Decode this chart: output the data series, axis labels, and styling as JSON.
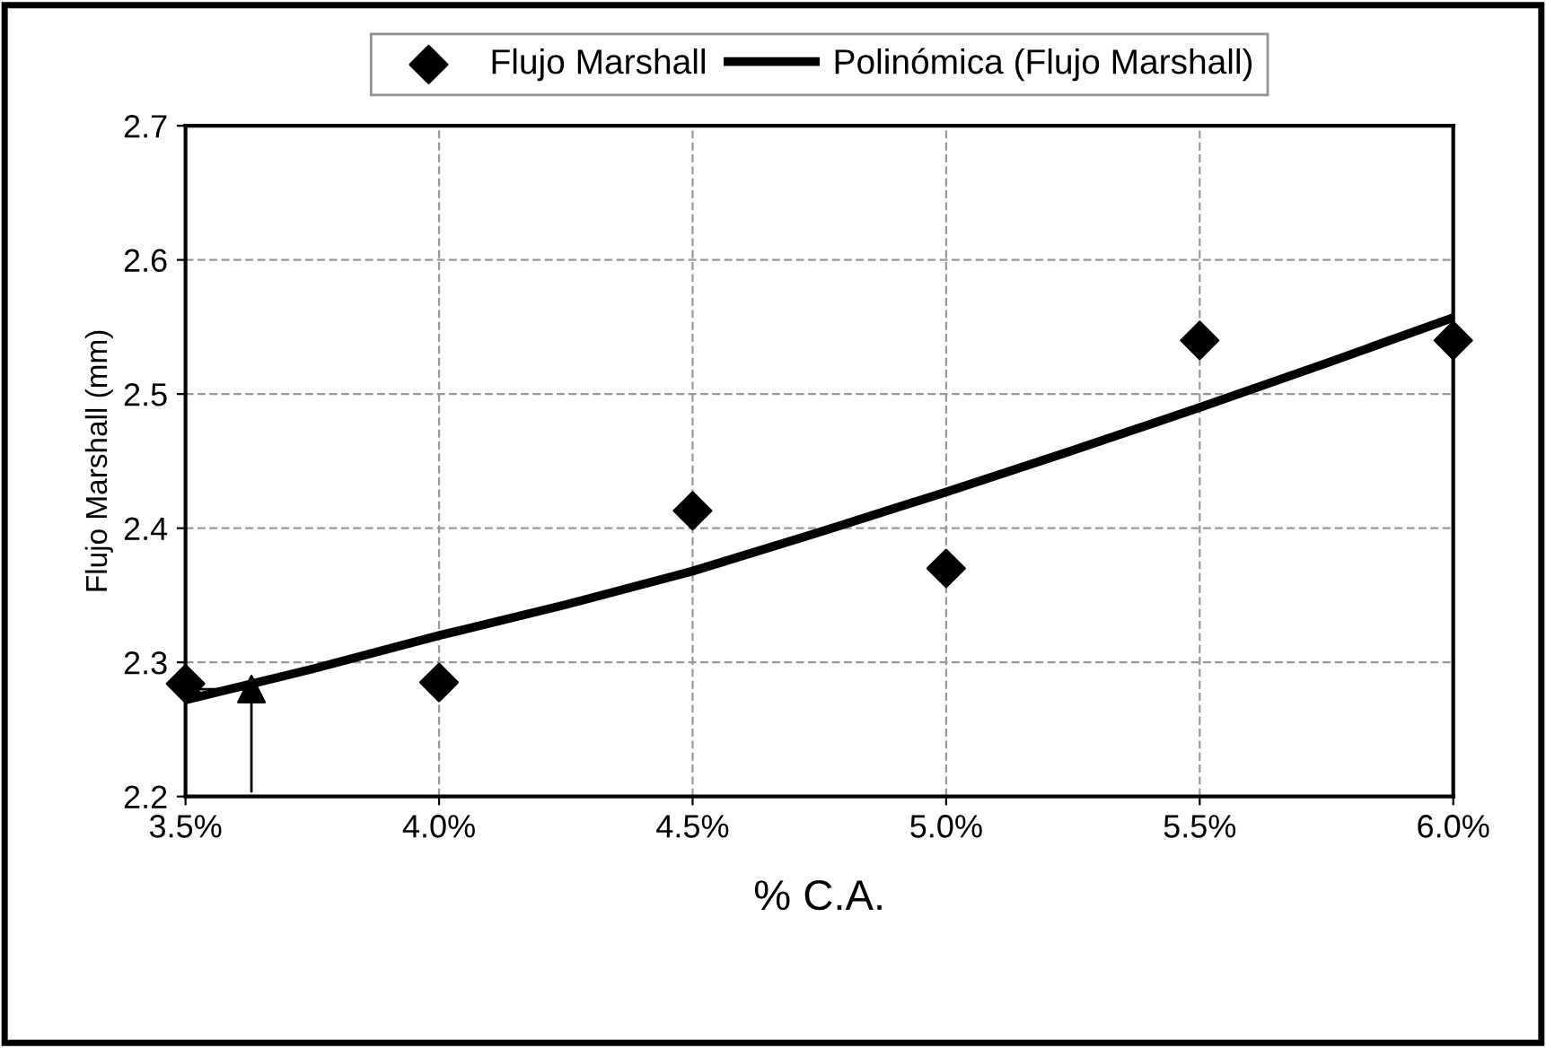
{
  "chart_data": {
    "type": "scatter",
    "xlabel": "% C.A.",
    "ylabel": "Flujo Marshall (mm)",
    "series": [
      {
        "name": "Flujo Marshall",
        "color": "#000000",
        "marker": "diamond",
        "x": [
          3.5,
          4.0,
          4.5,
          5.0,
          5.5,
          6.0
        ],
        "values": [
          2.284,
          2.285,
          2.413,
          2.37,
          2.54,
          2.54
        ]
      },
      {
        "name": "Polinómica (Flujo Marshall)",
        "type": "line",
        "color": "#000000",
        "marker": "none",
        "line_style": "solid",
        "x": [
          3.5,
          3.75,
          4.0,
          4.25,
          4.5,
          4.75,
          5.0,
          5.25,
          5.5,
          5.75,
          6.0
        ],
        "values": [
          2.272,
          2.295,
          2.32,
          2.343,
          2.368,
          2.397,
          2.427,
          2.458,
          2.49,
          2.523,
          2.557
        ]
      },
      {
        "color": "#000000",
        "marker": "triangle",
        "x": [
          3.63
        ],
        "values": [
          2.28
        ]
      }
    ],
    "xlim": [
      3.5,
      6.0
    ],
    "xticks": [
      {
        "value": 3.5,
        "label": "3.5%"
      },
      {
        "value": 4.0,
        "label": "4.0%"
      },
      {
        "value": 4.5,
        "label": "4.5%"
      },
      {
        "value": 5.0,
        "label": "5.0%"
      },
      {
        "value": 5.5,
        "label": "5.5%"
      },
      {
        "value": 6.0,
        "label": "6.0%"
      }
    ],
    "ylim": [
      2.2,
      2.7
    ],
    "yticks": [
      {
        "value": 2.2,
        "label": "2.2"
      },
      {
        "value": 2.3,
        "label": "2.3"
      },
      {
        "value": 2.4,
        "label": "2.4"
      },
      {
        "value": 2.5,
        "label": "2.5"
      },
      {
        "value": 2.6,
        "label": "2.6"
      },
      {
        "value": 2.7,
        "label": "2.7"
      }
    ],
    "grid": true,
    "legend": "top"
  }
}
